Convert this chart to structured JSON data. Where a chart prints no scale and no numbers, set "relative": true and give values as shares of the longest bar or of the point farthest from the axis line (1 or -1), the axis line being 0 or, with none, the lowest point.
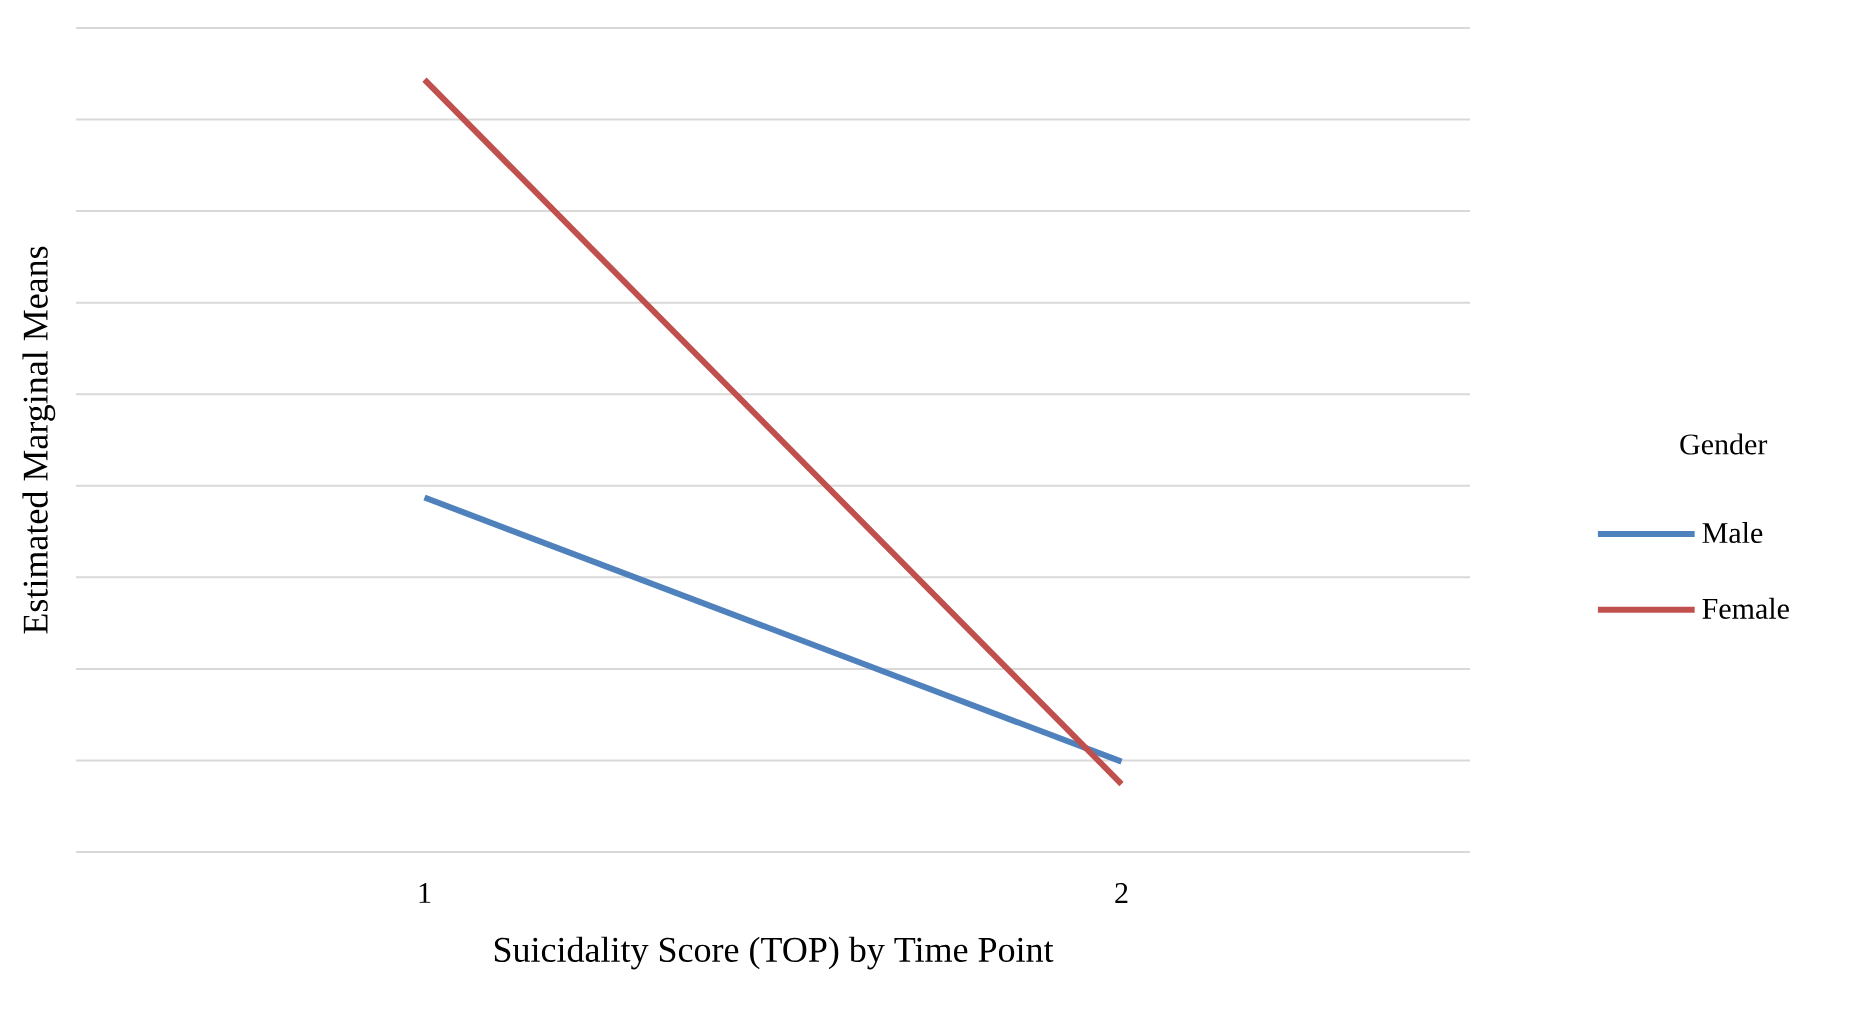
{
  "chart_data": {
    "type": "line",
    "relative": true,
    "xlabel": "Suicidality Score (TOP) by Time Point",
    "ylabel": "Estimated Marginal Means",
    "legend_title": "Gender",
    "legend": "right",
    "grid": "y",
    "categories": [
      "1",
      "2"
    ],
    "series": [
      {
        "name": "Male",
        "color": "#4f81bd",
        "values": [
          0.459,
          0.117
        ]
      },
      {
        "name": "Female",
        "color": "#c0504d",
        "values": [
          1,
          0.088
        ]
      }
    ]
  }
}
